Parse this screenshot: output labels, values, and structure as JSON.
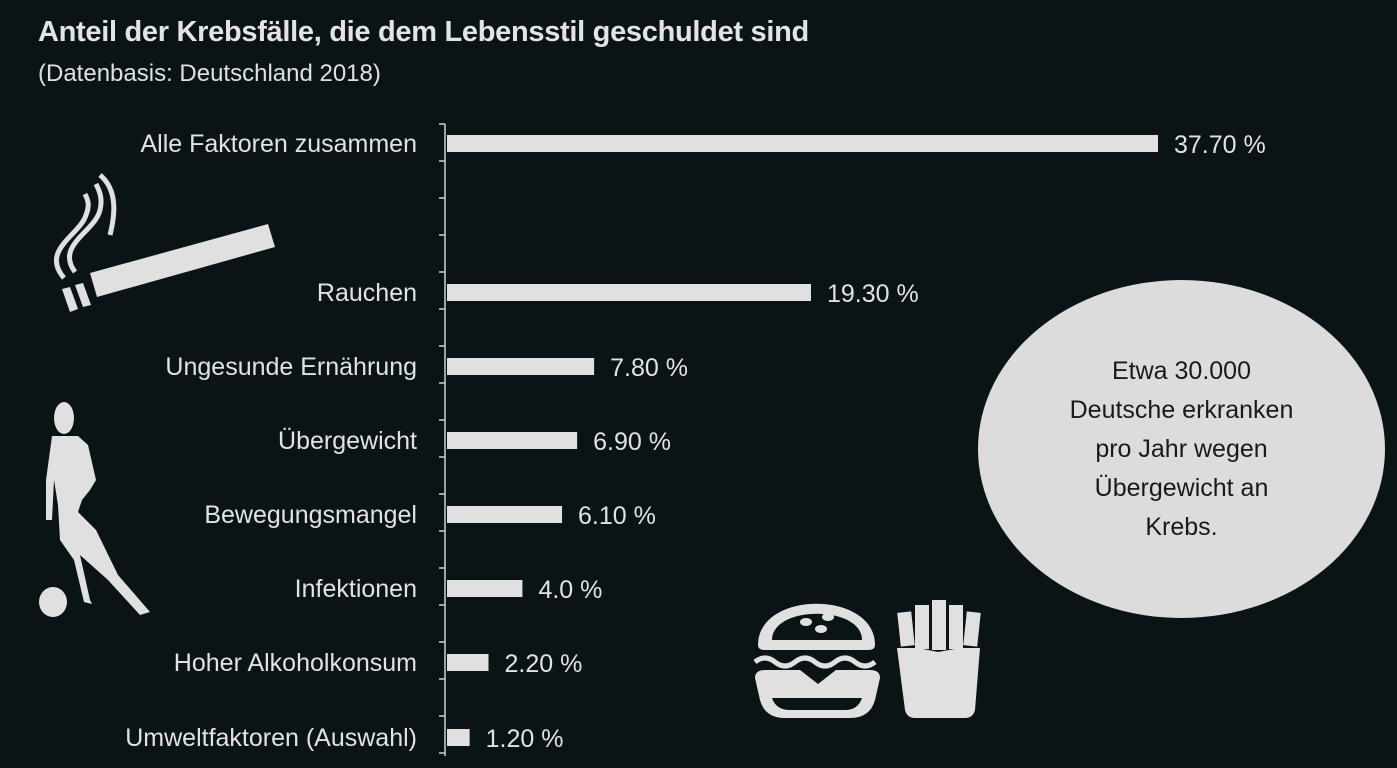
{
  "chart_data": {
    "type": "bar",
    "orientation": "horizontal",
    "title": "Anteil der Krebsfälle, die dem Lebensstil geschuldet sind",
    "subtitle": "(Datenbasis: Deutschland 2018)",
    "categories": [
      "Alle Faktoren zusammen",
      "Rauchen",
      "Ungesunde Ernährung",
      "Übergewicht",
      "Bewegungsmangel",
      "Infektionen",
      "Hoher Alkoholkonsum",
      "Umweltfaktoren (Auswahl)"
    ],
    "values": [
      37.7,
      19.3,
      7.8,
      6.9,
      6.1,
      4.0,
      2.2,
      1.2
    ],
    "data_labels": [
      "37.70 %",
      "19.30 %",
      "7.80 %",
      "6.90 %",
      "6.10 %",
      "4.0 %",
      "2.20 %",
      "1.20 %"
    ],
    "xlim": [
      0,
      40
    ],
    "unit": "%",
    "grid": false,
    "colors": {
      "background": "#0a1417",
      "bar": "#e0e0e0",
      "text": "#e2e2e2",
      "note_bg": "#dcdcdc"
    }
  },
  "note": "Etwa 30.000 Deutsche erkranken pro Jahr wegen Übergewicht an Krebs.",
  "icons": [
    "cigarette-icon",
    "football-player-icon",
    "burger-icon",
    "fries-icon"
  ]
}
